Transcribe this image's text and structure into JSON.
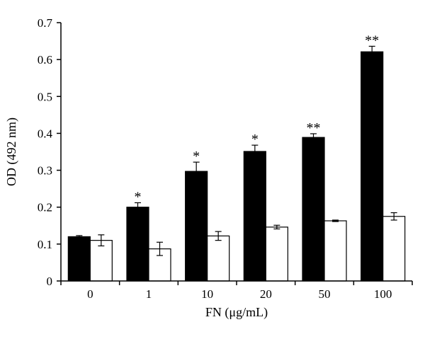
{
  "chart_data": {
    "type": "bar",
    "title": "",
    "xlabel": "FN (μg/mL)",
    "ylabel": "OD (492 nm)",
    "ylim": [
      0,
      0.7
    ],
    "yticks": [
      "0",
      "0.1",
      "0.2",
      "0.3",
      "0.4",
      "0.5",
      "0.6",
      "0.7"
    ],
    "categories": [
      "0",
      "1",
      "10",
      "20",
      "50",
      "100"
    ],
    "grid": false,
    "legend": "none",
    "series": [
      {
        "fill": "#000000",
        "values": [
          0.12,
          0.2,
          0.297,
          0.351,
          0.389,
          0.621
        ],
        "errors": [
          0.003,
          0.012,
          0.025,
          0.017,
          0.01,
          0.015
        ],
        "significance": [
          "",
          "*",
          "*",
          "*",
          "**",
          "**"
        ]
      },
      {
        "fill": "#ffffff",
        "values": [
          0.11,
          0.087,
          0.122,
          0.146,
          0.163,
          0.175
        ],
        "errors": [
          0.015,
          0.018,
          0.012,
          0.005,
          0.002,
          0.01
        ],
        "significance": [
          "",
          "",
          "",
          "",
          "",
          ""
        ]
      }
    ]
  }
}
